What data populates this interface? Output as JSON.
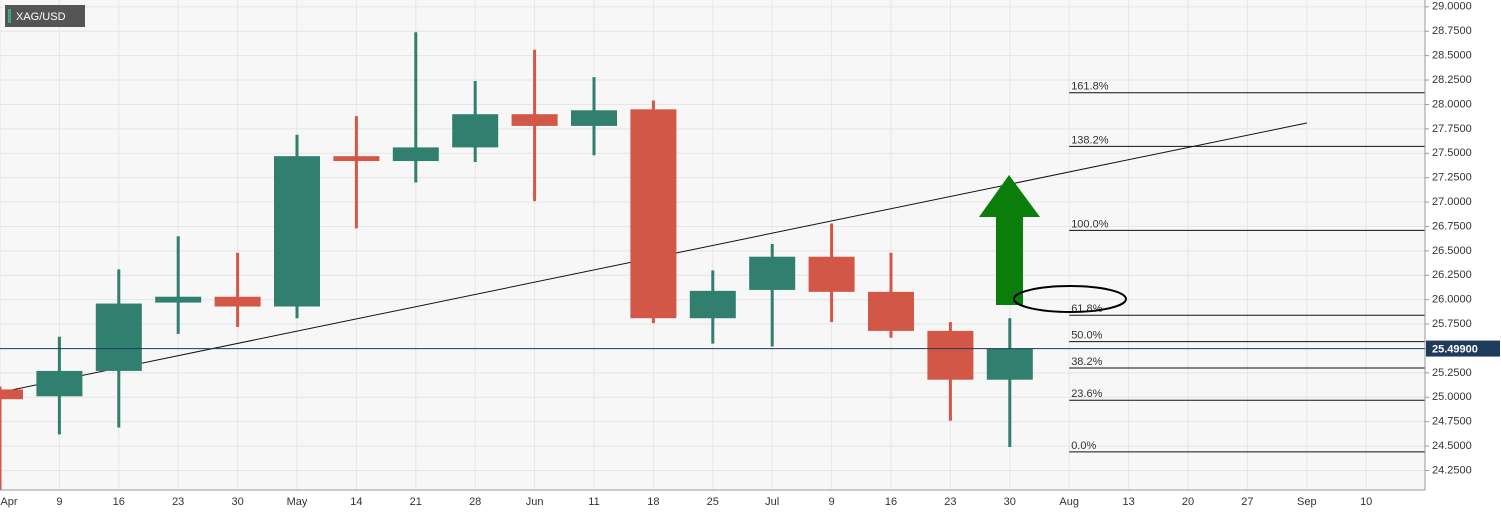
{
  "chart_data": {
    "type": "candlestick",
    "symbol": "XAG/USD",
    "categories": [
      "Apr",
      "9",
      "16",
      "23",
      "30",
      "May",
      "14",
      "21",
      "28",
      "Jun",
      "11",
      "18",
      "25",
      "Jul",
      "9",
      "16",
      "23",
      "30",
      "Aug",
      "13",
      "20",
      "27",
      "Sep",
      "10"
    ],
    "open": [
      25.08,
      25.01,
      25.27,
      25.97,
      26.03,
      25.93,
      27.47,
      27.42,
      27.56,
      27.9,
      27.78,
      27.95,
      25.81,
      26.1,
      26.44,
      26.08,
      25.68,
      25.18,
      null,
      null,
      null,
      null,
      null,
      null
    ],
    "high": [
      25.11,
      25.62,
      26.31,
      26.65,
      26.48,
      27.69,
      27.88,
      28.74,
      28.24,
      28.56,
      28.28,
      28.04,
      26.3,
      26.57,
      26.78,
      26.48,
      25.77,
      25.81,
      null,
      null,
      null,
      null,
      null,
      null
    ],
    "low": [
      24.0,
      24.62,
      24.69,
      25.65,
      25.72,
      25.81,
      26.73,
      27.2,
      27.41,
      27.01,
      27.48,
      25.76,
      25.55,
      25.52,
      25.77,
      25.61,
      24.76,
      24.49,
      null,
      null,
      null,
      null,
      null,
      null
    ],
    "close": [
      24.98,
      25.27,
      25.96,
      26.03,
      25.93,
      27.47,
      27.42,
      27.56,
      27.9,
      27.78,
      27.94,
      25.81,
      26.09,
      26.44,
      26.08,
      25.68,
      25.18,
      25.5,
      null,
      null,
      null,
      null,
      null,
      null
    ],
    "up_color": "#317f6f",
    "down_color": "#d35746",
    "ylim": [
      24.05,
      29.07
    ],
    "yticks": [
      {
        "value": 29,
        "label": "29.0000"
      },
      {
        "value": 28.75,
        "label": "28.7500"
      },
      {
        "value": 28.5,
        "label": "28.5000"
      },
      {
        "value": 28.25,
        "label": "28.2500"
      },
      {
        "value": 28,
        "label": "28.0000"
      },
      {
        "value": 27.75,
        "label": "27.7500"
      },
      {
        "value": 27.5,
        "label": "27.5000"
      },
      {
        "value": 27.25,
        "label": "27.2500"
      },
      {
        "value": 27,
        "label": "27.0000"
      },
      {
        "value": 26.75,
        "label": "26.7500"
      },
      {
        "value": 26.5,
        "label": "26.5000"
      },
      {
        "value": 26.25,
        "label": "26.2500"
      },
      {
        "value": 26,
        "label": "26.0000"
      },
      {
        "value": 25.75,
        "label": "25.7500"
      },
      {
        "value": 25.5,
        "label": "25.5000"
      },
      {
        "value": 25.25,
        "label": "25.2500"
      },
      {
        "value": 25,
        "label": "25.0000"
      },
      {
        "value": 24.75,
        "label": "24.7500"
      },
      {
        "value": 24.5,
        "label": "24.5000"
      },
      {
        "value": 24.25,
        "label": "24.2500"
      }
    ],
    "grid": true,
    "last_price": {
      "value": 25.499,
      "label": "25.49900"
    },
    "fib_levels": [
      {
        "label": "161.8%",
        "value": 28.12
      },
      {
        "label": "138.2%",
        "value": 27.57
      },
      {
        "label": "100.0%",
        "value": 26.71
      },
      {
        "label": "61.8%",
        "value": 25.84
      },
      {
        "label": "50.0%",
        "value": 25.57
      },
      {
        "label": "38.2%",
        "value": 25.3
      },
      {
        "label": "23.6%",
        "value": 24.97
      },
      {
        "label": "0.0%",
        "value": 24.44
      }
    ],
    "trendline": {
      "from": {
        "category": "Apr",
        "value": 25.05
      },
      "to": {
        "category": "Sep",
        "value": 27.81
      }
    }
  }
}
